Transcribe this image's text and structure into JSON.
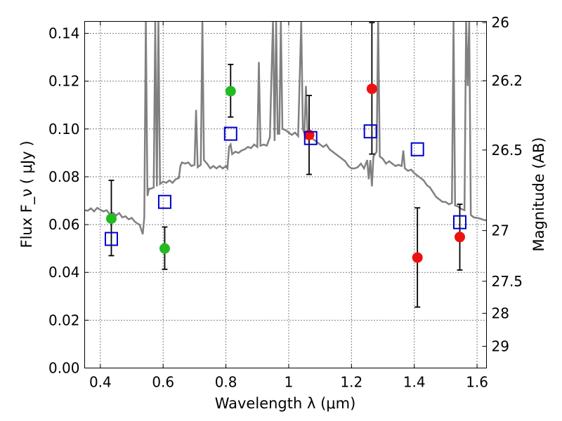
{
  "chart_data": {
    "type": "scatter",
    "xlabel": "Wavelength  λ (μm)",
    "ylabel": "Flux  F_ν  ( μJy )",
    "ylabel_right": "Magnitude (AB)",
    "xlim": [
      0.35,
      1.63
    ],
    "ylim": [
      0.0,
      0.145
    ],
    "grid": true,
    "x_ticks": [
      0.4,
      0.6,
      0.8,
      1.0,
      1.2,
      1.4,
      1.6
    ],
    "x_tick_labels": [
      "0.4",
      "0.6",
      "0.8",
      "1",
      "1.2",
      "1.4",
      "1.6"
    ],
    "y_ticks": [
      0.0,
      0.02,
      0.04,
      0.06,
      0.08,
      0.1,
      0.12,
      0.14
    ],
    "y_tick_labels": [
      "0.00",
      "0.02",
      "0.04",
      "0.06",
      "0.08",
      "0.10",
      "0.12",
      "0.14"
    ],
    "right_ticks": [
      {
        "label": "26",
        "flux": 0.1445
      },
      {
        "label": "26.2",
        "flux": 0.1202
      },
      {
        "label": "26.5",
        "flux": 0.0912
      },
      {
        "label": "27",
        "flux": 0.0575
      },
      {
        "label": "27.5",
        "flux": 0.0363
      },
      {
        "label": "28",
        "flux": 0.0229
      },
      {
        "label": "29",
        "flux": 0.0091
      }
    ],
    "series": [
      {
        "marker": "circle",
        "color": "#22bb22",
        "x": [
          0.435,
          0.605,
          0.815
        ],
        "y": [
          0.0625,
          0.05,
          0.1158
        ],
        "err": [
          [
            0.047,
            0.0785
          ],
          [
            0.0413,
            0.059
          ],
          [
            0.105,
            0.127
          ]
        ]
      },
      {
        "marker": "circle",
        "color": "#ee1111",
        "x": [
          1.065,
          1.265,
          1.41,
          1.545
        ],
        "y": [
          0.0975,
          0.1168,
          0.0462,
          0.0548
        ],
        "err": [
          [
            0.081,
            0.114
          ],
          [
            0.0895,
            0.1445
          ],
          [
            0.0255,
            0.067
          ],
          [
            0.041,
            0.0685
          ]
        ]
      },
      {
        "marker": "open-square",
        "color": "#0000cc",
        "x": [
          0.435,
          0.605,
          0.815,
          1.07,
          1.26,
          1.41,
          1.545
        ],
        "y": [
          0.054,
          0.0695,
          0.098,
          0.0962,
          0.099,
          0.0915,
          0.061
        ]
      }
    ],
    "spectrum": {
      "color": "#808080",
      "points": [
        [
          0.35,
          0.066
        ],
        [
          0.36,
          0.0658
        ],
        [
          0.37,
          0.0668
        ],
        [
          0.38,
          0.0655
        ],
        [
          0.39,
          0.067
        ],
        [
          0.4,
          0.0662
        ],
        [
          0.41,
          0.0655
        ],
        [
          0.42,
          0.066
        ],
        [
          0.43,
          0.0643
        ],
        [
          0.44,
          0.065
        ],
        [
          0.45,
          0.0638
        ],
        [
          0.46,
          0.0648
        ],
        [
          0.47,
          0.063
        ],
        [
          0.48,
          0.0635
        ],
        [
          0.49,
          0.0622
        ],
        [
          0.5,
          0.0628
        ],
        [
          0.51,
          0.0612
        ],
        [
          0.52,
          0.0603
        ],
        [
          0.525,
          0.06
        ],
        [
          0.53,
          0.058
        ],
        [
          0.535,
          0.056
        ],
        [
          0.54,
          0.063
        ],
        [
          0.545,
          0.145
        ],
        [
          0.55,
          0.072
        ],
        [
          0.555,
          0.075
        ],
        [
          0.56,
          0.075
        ],
        [
          0.57,
          0.0755
        ],
        [
          0.575,
          0.145
        ],
        [
          0.58,
          0.076
        ],
        [
          0.585,
          0.145
        ],
        [
          0.59,
          0.077
        ],
        [
          0.6,
          0.078
        ],
        [
          0.61,
          0.0775
        ],
        [
          0.62,
          0.0785
        ],
        [
          0.63,
          0.0775
        ],
        [
          0.64,
          0.079
        ],
        [
          0.65,
          0.0795
        ],
        [
          0.655,
          0.0845
        ],
        [
          0.66,
          0.086
        ],
        [
          0.67,
          0.0855
        ],
        [
          0.68,
          0.086
        ],
        [
          0.69,
          0.0845
        ],
        [
          0.7,
          0.085
        ],
        [
          0.705,
          0.108
        ],
        [
          0.71,
          0.084
        ],
        [
          0.72,
          0.085
        ],
        [
          0.725,
          0.145
        ],
        [
          0.73,
          0.087
        ],
        [
          0.74,
          0.0855
        ],
        [
          0.75,
          0.0835
        ],
        [
          0.76,
          0.0845
        ],
        [
          0.77,
          0.0835
        ],
        [
          0.78,
          0.0845
        ],
        [
          0.79,
          0.0835
        ],
        [
          0.8,
          0.0845
        ],
        [
          0.805,
          0.0835
        ],
        [
          0.81,
          0.0925
        ],
        [
          0.815,
          0.0935
        ],
        [
          0.82,
          0.0895
        ],
        [
          0.83,
          0.0905
        ],
        [
          0.84,
          0.09
        ],
        [
          0.85,
          0.091
        ],
        [
          0.86,
          0.0915
        ],
        [
          0.87,
          0.0925
        ],
        [
          0.88,
          0.092
        ],
        [
          0.89,
          0.0935
        ],
        [
          0.9,
          0.0925
        ],
        [
          0.905,
          0.128
        ],
        [
          0.91,
          0.093
        ],
        [
          0.92,
          0.0935
        ],
        [
          0.93,
          0.093
        ],
        [
          0.94,
          0.0965
        ],
        [
          0.945,
          0.122
        ],
        [
          0.95,
          0.145
        ],
        [
          0.955,
          0.095
        ],
        [
          0.96,
          0.145
        ],
        [
          0.965,
          0.098
        ],
        [
          0.97,
          0.098
        ],
        [
          0.975,
          0.145
        ],
        [
          0.98,
          0.1
        ],
        [
          0.99,
          0.0995
        ],
        [
          1.0,
          0.0985
        ],
        [
          1.01,
          0.0975
        ],
        [
          1.02,
          0.0985
        ],
        [
          1.03,
          0.097
        ],
        [
          1.04,
          0.145
        ],
        [
          1.045,
          0.1
        ],
        [
          1.05,
          0.098
        ],
        [
          1.055,
          0.118
        ],
        [
          1.06,
          0.098
        ],
        [
          1.07,
          0.0965
        ],
        [
          1.08,
          0.0955
        ],
        [
          1.09,
          0.0945
        ],
        [
          1.1,
          0.0935
        ],
        [
          1.11,
          0.0925
        ],
        [
          1.12,
          0.0935
        ],
        [
          1.13,
          0.0915
        ],
        [
          1.14,
          0.0905
        ],
        [
          1.15,
          0.0895
        ],
        [
          1.16,
          0.0885
        ],
        [
          1.17,
          0.0875
        ],
        [
          1.18,
          0.0865
        ],
        [
          1.19,
          0.0845
        ],
        [
          1.2,
          0.0835
        ],
        [
          1.21,
          0.0835
        ],
        [
          1.22,
          0.084
        ],
        [
          1.23,
          0.0855
        ],
        [
          1.24,
          0.0835
        ],
        [
          1.25,
          0.087
        ],
        [
          1.255,
          0.079
        ],
        [
          1.26,
          0.087
        ],
        [
          1.265,
          0.076
        ],
        [
          1.27,
          0.0885
        ],
        [
          1.28,
          0.0905
        ],
        [
          1.285,
          0.145
        ],
        [
          1.29,
          0.0885
        ],
        [
          1.3,
          0.0875
        ],
        [
          1.31,
          0.0855
        ],
        [
          1.32,
          0.0865
        ],
        [
          1.33,
          0.0855
        ],
        [
          1.34,
          0.0845
        ],
        [
          1.35,
          0.085
        ],
        [
          1.36,
          0.0845
        ],
        [
          1.365,
          0.091
        ],
        [
          1.37,
          0.0835
        ],
        [
          1.38,
          0.0825
        ],
        [
          1.39,
          0.083
        ],
        [
          1.4,
          0.0815
        ],
        [
          1.41,
          0.0805
        ],
        [
          1.42,
          0.0795
        ],
        [
          1.43,
          0.0785
        ],
        [
          1.44,
          0.0765
        ],
        [
          1.45,
          0.0755
        ],
        [
          1.46,
          0.0735
        ],
        [
          1.47,
          0.0715
        ],
        [
          1.48,
          0.0705
        ],
        [
          1.49,
          0.0695
        ],
        [
          1.5,
          0.0695
        ],
        [
          1.51,
          0.0685
        ],
        [
          1.52,
          0.069
        ],
        [
          1.525,
          0.145
        ],
        [
          1.53,
          0.068
        ],
        [
          1.54,
          0.0675
        ],
        [
          1.55,
          0.0665
        ],
        [
          1.56,
          0.066
        ],
        [
          1.565,
          0.145
        ],
        [
          1.57,
          0.118
        ],
        [
          1.575,
          0.145
        ],
        [
          1.58,
          0.064
        ],
        [
          1.59,
          0.063
        ],
        [
          1.6,
          0.0628
        ],
        [
          1.61,
          0.0625
        ],
        [
          1.62,
          0.062
        ],
        [
          1.63,
          0.0618
        ]
      ]
    }
  }
}
